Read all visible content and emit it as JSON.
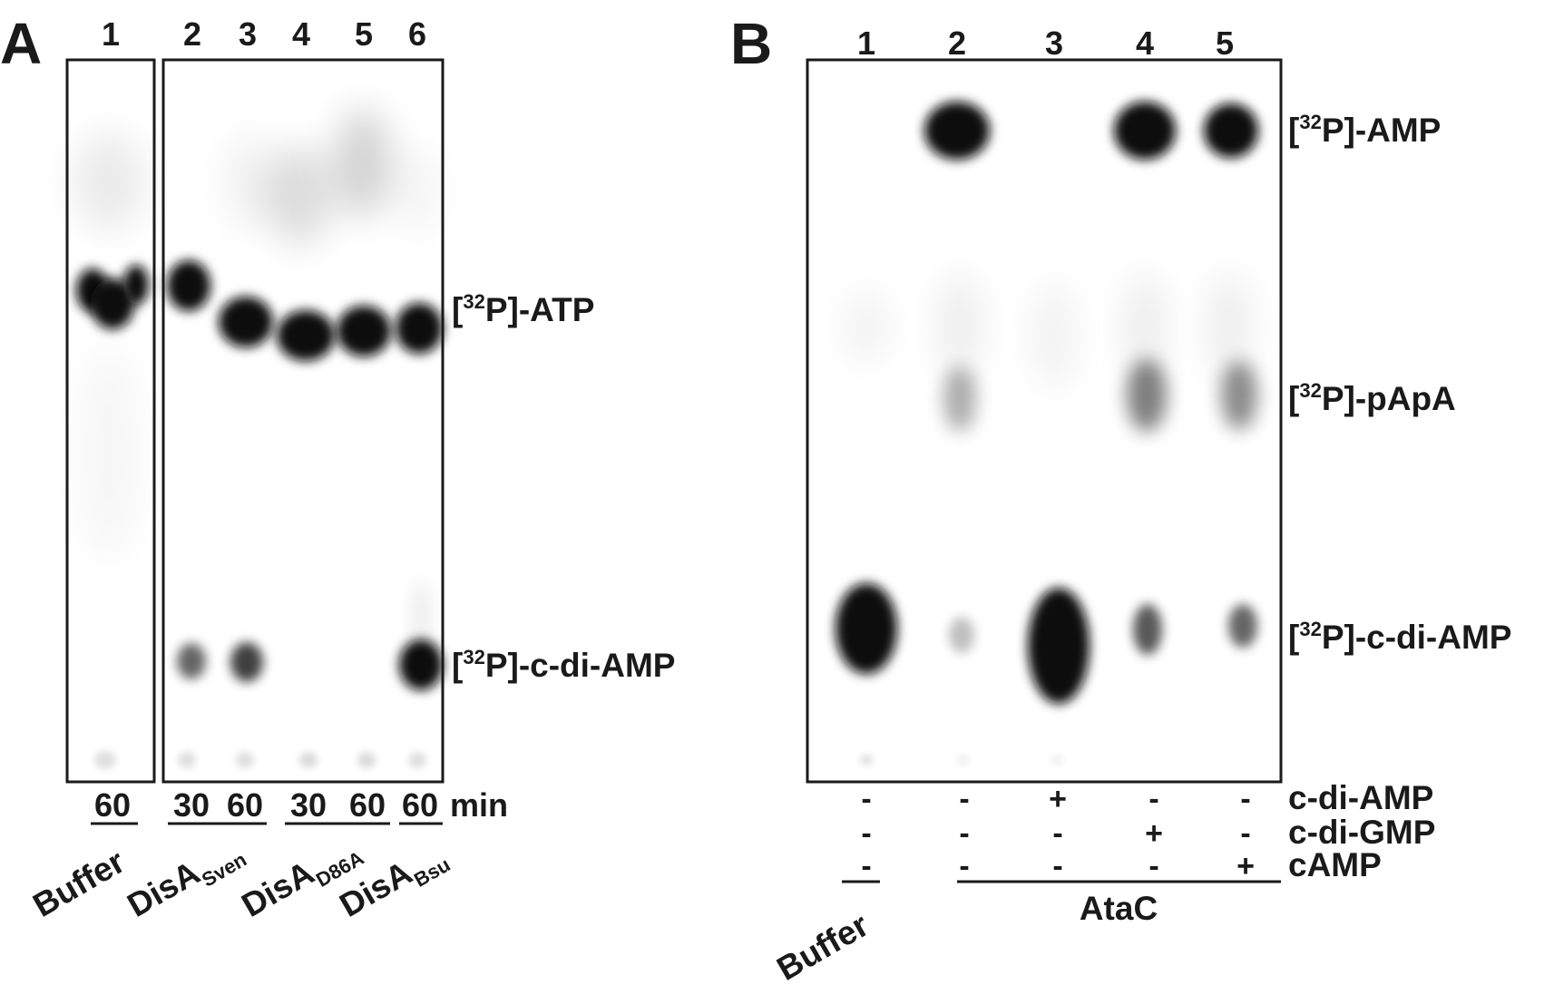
{
  "panel_a": {
    "letter": "A",
    "lanes": [
      "1",
      "2",
      "3",
      "4",
      "5",
      "6"
    ],
    "times": [
      "60",
      "30",
      "60",
      "30",
      "60",
      "60"
    ],
    "time_unit": "min",
    "bands": {
      "atp": {
        "prefix": "[",
        "sup": "32",
        "suffix": "P]-ATP"
      },
      "cdiamp": {
        "prefix": "[",
        "sup": "32",
        "suffix": "P]-c-di-AMP"
      }
    },
    "groups": [
      {
        "main": "Buffer",
        "sub": ""
      },
      {
        "main": "DisA",
        "sub": "Sven"
      },
      {
        "main": "DisA",
        "sub": "D86A"
      },
      {
        "main": "DisA",
        "sub": "Bsu"
      }
    ]
  },
  "panel_b": {
    "letter": "B",
    "lanes": [
      "1",
      "2",
      "3",
      "4",
      "5"
    ],
    "bands": {
      "amp": {
        "prefix": "[",
        "sup": "32",
        "suffix": "P]-AMP"
      },
      "papa": {
        "prefix": "[",
        "sup": "32",
        "suffix": "P]-pApA"
      },
      "cdiamp": {
        "prefix": "[",
        "sup": "32",
        "suffix": "P]-c-di-AMP"
      }
    },
    "conditions": [
      {
        "label": "c-di-AMP",
        "signs": [
          "-",
          "-",
          "+",
          "-",
          "-"
        ]
      },
      {
        "label": "c-di-GMP",
        "signs": [
          "-",
          "-",
          "-",
          "+",
          "-"
        ]
      },
      {
        "label": "cAMP",
        "signs": [
          "-",
          "-",
          "-",
          "-",
          "+"
        ]
      }
    ],
    "groups": {
      "buffer": "Buffer",
      "enzyme": "AtaC"
    }
  }
}
